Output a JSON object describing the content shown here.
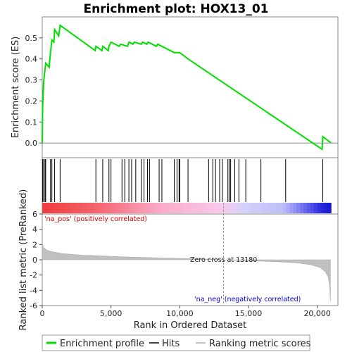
{
  "chart_data": {
    "title": "Enrichment plot: HOX13_01",
    "type": "line",
    "x_axis": {
      "label": "Rank in Ordered Dataset",
      "range": [
        0,
        21500
      ],
      "tick_labels": [
        "0",
        "5,000",
        "10,000",
        "15,000",
        "20,000"
      ],
      "tick_values": [
        0,
        5000,
        10000,
        15000,
        20000
      ]
    },
    "top_panel": {
      "ylabel": "Enrichment score (ES)",
      "ylim": [
        -0.07,
        0.6
      ],
      "tick_labels": [
        "0.0",
        "0.1",
        "0.2",
        "0.3",
        "0.4",
        "0.5"
      ],
      "tick_values": [
        0.0,
        0.1,
        0.2,
        0.3,
        0.4,
        0.5
      ],
      "series": [
        {
          "name": "Enrichment profile",
          "color": "#00e000",
          "points": [
            [
              0,
              0
            ],
            [
              30,
              0.17
            ],
            [
              100,
              0.29
            ],
            [
              250,
              0.38
            ],
            [
              500,
              0.36
            ],
            [
              600,
              0.43
            ],
            [
              700,
              0.49
            ],
            [
              850,
              0.48
            ],
            [
              900,
              0.54
            ],
            [
              1200,
              0.51
            ],
            [
              1300,
              0.56
            ],
            [
              3850,
              0.44
            ],
            [
              3900,
              0.46
            ],
            [
              4350,
              0.44
            ],
            [
              4400,
              0.46
            ],
            [
              4800,
              0.44
            ],
            [
              4850,
              0.46
            ],
            [
              5000,
              0.48
            ],
            [
              5600,
              0.46
            ],
            [
              5700,
              0.47
            ],
            [
              6200,
              0.46
            ],
            [
              6300,
              0.48
            ],
            [
              6600,
              0.47
            ],
            [
              6700,
              0.48
            ],
            [
              7200,
              0.47
            ],
            [
              7300,
              0.48
            ],
            [
              7600,
              0.47
            ],
            [
              7700,
              0.48
            ],
            [
              8300,
              0.46
            ],
            [
              8400,
              0.47
            ],
            [
              9600,
              0.43
            ],
            [
              10000,
              0.43
            ],
            [
              10600,
              0.4
            ],
            [
              20350,
              -0.03
            ],
            [
              20400,
              0.03
            ],
            [
              21000,
              0.0
            ]
          ]
        }
      ],
      "hit_ranks": [
        30,
        100,
        200,
        250,
        600,
        700,
        900,
        1300,
        3900,
        4400,
        4850,
        5000,
        5800,
        6000,
        6300,
        6500,
        6800,
        7200,
        7400,
        7650,
        7800,
        8500,
        8700,
        9600,
        9800,
        9950,
        10000,
        10600,
        12100,
        12400,
        12600,
        12900,
        13100,
        13500,
        13600,
        13700,
        14000,
        14300,
        14800,
        15900,
        17700,
        20400
      ],
      "hits_color": "#000000"
    },
    "metric_panel": {
      "ylabel": "Ranked list metric (PreRanked)",
      "ylim": [
        -6,
        6
      ],
      "tick_labels": [
        "6",
        "4",
        "2",
        "0",
        "-2",
        "-4",
        "-6"
      ],
      "tick_values": [
        6,
        4,
        2,
        0,
        -2,
        -4,
        -6
      ],
      "zero_cross_text": "Zero cross at 13180",
      "zero_cross_rank": 13180,
      "pos_label": "'na_pos' (positively correlated)",
      "neg_label": "'na_neg' (negatively correlated)",
      "pos_color": "#cc0000",
      "neg_color": "#0000cc",
      "fill_color": "#c0c0c0",
      "profile": [
        [
          0,
          2.2
        ],
        [
          100,
          1.6
        ],
        [
          300,
          1.3
        ],
        [
          700,
          1.05
        ],
        [
          1500,
          0.8
        ],
        [
          3000,
          0.6
        ],
        [
          6000,
          0.38
        ],
        [
          9000,
          0.22
        ],
        [
          12000,
          0.08
        ],
        [
          13180,
          0.0
        ],
        [
          15000,
          -0.12
        ],
        [
          17000,
          -0.25
        ],
        [
          18500,
          -0.4
        ],
        [
          19500,
          -0.65
        ],
        [
          20200,
          -1.0
        ],
        [
          20600,
          -1.6
        ],
        [
          20800,
          -2.3
        ],
        [
          20900,
          -3.5
        ],
        [
          20950,
          -5.5
        ]
      ]
    },
    "legend": {
      "entries": [
        "Enrichment profile",
        "Hits",
        "Ranking metric scores"
      ],
      "colors": [
        "#00e000",
        "#000000",
        "#c0c0c0"
      ]
    }
  }
}
